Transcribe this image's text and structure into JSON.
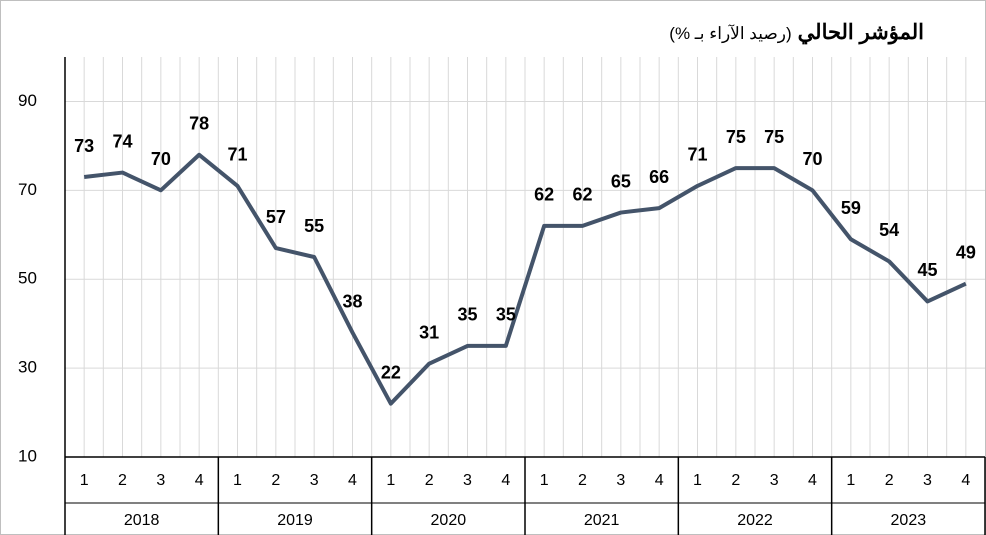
{
  "chart_data": {
    "type": "line",
    "title": "المؤشر الحالي",
    "subtitle": "(رصيد الآراء بـ %)",
    "categories": [
      "1",
      "2",
      "3",
      "4",
      "1",
      "2",
      "3",
      "4",
      "1",
      "2",
      "3",
      "4",
      "1",
      "2",
      "3",
      "4",
      "1",
      "2",
      "3",
      "4",
      "1",
      "2",
      "3",
      "4"
    ],
    "years": [
      2018,
      2019,
      2020,
      2021,
      2022,
      2023
    ],
    "series": [
      {
        "color": "#44546a",
        "label_color": "#34569a",
        "values": [
          73,
          74,
          70,
          78,
          71,
          57,
          55,
          38,
          22,
          31,
          35,
          35,
          62,
          62,
          65,
          66,
          71,
          75,
          75,
          70,
          59,
          54,
          45,
          49
        ]
      }
    ],
    "ylim": [
      10,
      100
    ],
    "yticks": [
      10,
      30,
      50,
      70,
      90
    ],
    "grid": true
  }
}
